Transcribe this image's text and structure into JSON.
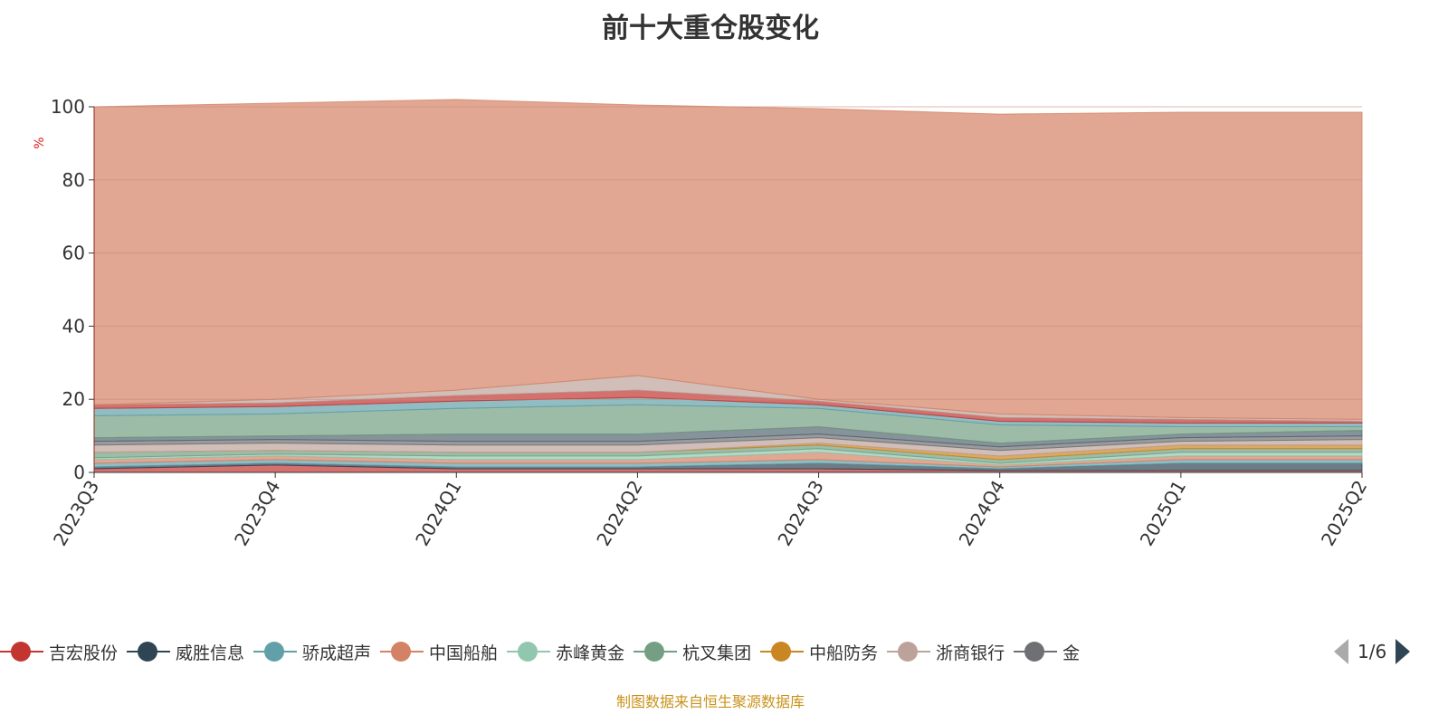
{
  "chart_data": {
    "type": "area",
    "stacked": true,
    "title": "前十大重仓股变化",
    "ylabel": "%",
    "ylim": [
      0,
      100
    ],
    "yticks": [
      0,
      20,
      40,
      60,
      80,
      100
    ],
    "categories": [
      "2023Q3",
      "2023Q4",
      "2024Q1",
      "2024Q2",
      "2024Q3",
      "2024Q4",
      "2025Q1",
      "2025Q2"
    ],
    "legend_position": "bottom",
    "series": [
      {
        "name": "吉宏股份",
        "color": "#c23531",
        "values": [
          1,
          2,
          1,
          1,
          1,
          0.5,
          0.5,
          0.5
        ]
      },
      {
        "name": "威胜信息",
        "color": "#2f4554",
        "values": [
          0.5,
          0.5,
          0.5,
          0.5,
          1.5,
          0.5,
          2,
          2
        ]
      },
      {
        "name": "骄成超声",
        "color": "#61a0a8",
        "values": [
          1,
          1,
          1,
          1,
          1,
          0.5,
          1,
          1
        ]
      },
      {
        "name": "中国船舶",
        "color": "#d48265",
        "values": [
          1,
          1,
          1,
          1,
          2,
          0.5,
          1,
          1
        ]
      },
      {
        "name": "赤峰黄金",
        "color": "#91c7ae",
        "values": [
          0.5,
          0.5,
          1,
          1,
          1,
          0.5,
          1,
          1
        ]
      },
      {
        "name": "杭叉集团",
        "color": "#749f83",
        "values": [
          1.5,
          1,
          1,
          1,
          1,
          1,
          1,
          1
        ]
      },
      {
        "name": "中船防务",
        "color": "#ca8622",
        "values": [
          0,
          0,
          0,
          0,
          0.5,
          1,
          1,
          1
        ]
      },
      {
        "name": "浙商银行",
        "color": "#bda29a",
        "values": [
          2,
          2,
          2,
          2,
          1.5,
          1.5,
          1,
          1.5
        ]
      },
      {
        "name": "金",
        "color": "#6e7074",
        "values": [
          1,
          1,
          1,
          1,
          1,
          1,
          1,
          1
        ]
      },
      {
        "color": "#546570",
        "values": [
          1,
          1,
          2,
          2,
          2,
          1,
          1,
          1.5
        ]
      },
      {
        "color": "#749f83",
        "values": [
          6,
          6,
          7,
          8,
          5,
          5,
          2,
          1
        ]
      },
      {
        "color": "#61a0a8",
        "values": [
          2,
          2,
          2,
          2,
          1,
          1,
          1,
          1
        ]
      },
      {
        "color": "#c23531",
        "values": [
          1,
          1,
          1.5,
          2,
          1,
          1,
          1,
          0.5
        ]
      },
      {
        "color": "#bda29a",
        "values": [
          0,
          1,
          1.5,
          4,
          0.5,
          1,
          0.5,
          0.5
        ]
      },
      {
        "color": "#d48265",
        "values": [
          81.5,
          81,
          79.5,
          74,
          79.5,
          82,
          83.5,
          84
        ]
      }
    ]
  },
  "legend": {
    "page": "1/6"
  },
  "source": "制图数据来自恒生聚源数据库"
}
